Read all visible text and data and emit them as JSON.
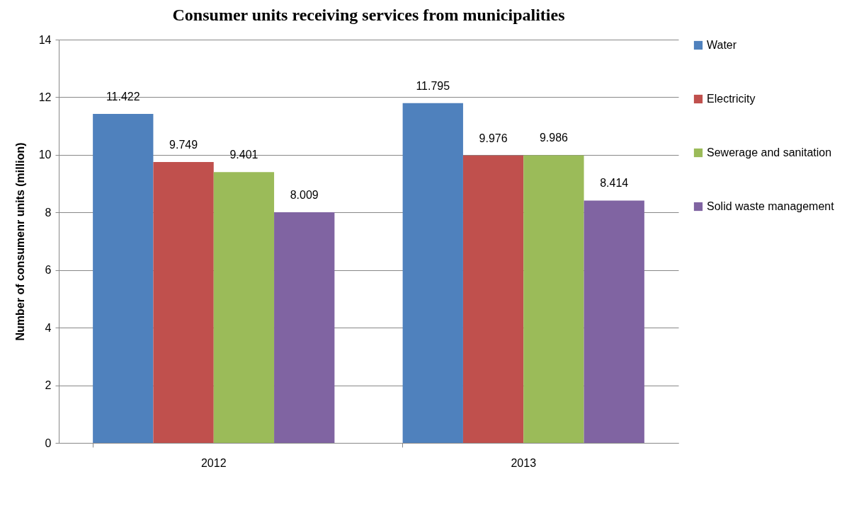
{
  "chart_data": {
    "type": "bar",
    "title": "Consumer units receiving services from municipalities",
    "ylabel": "Number of consumenr units (million)",
    "categories": [
      "2012",
      "2013"
    ],
    "series": [
      {
        "name": "Water",
        "color": "#4f81bd",
        "values": [
          11.422,
          11.795
        ]
      },
      {
        "name": "Electricity",
        "color": "#c0504d",
        "values": [
          9.749,
          9.976
        ]
      },
      {
        "name": "Sewerage and sanitation",
        "color": "#9bbb59",
        "values": [
          9.401,
          9.986
        ]
      },
      {
        "name": "Solid waste management",
        "color": "#8064a2",
        "values": [
          8.009,
          8.414
        ]
      }
    ],
    "ylim": [
      0,
      14
    ],
    "yticks": [
      0,
      2,
      4,
      6,
      8,
      10,
      12,
      14
    ],
    "grid": "y",
    "legend": "right",
    "data_labels": true
  }
}
